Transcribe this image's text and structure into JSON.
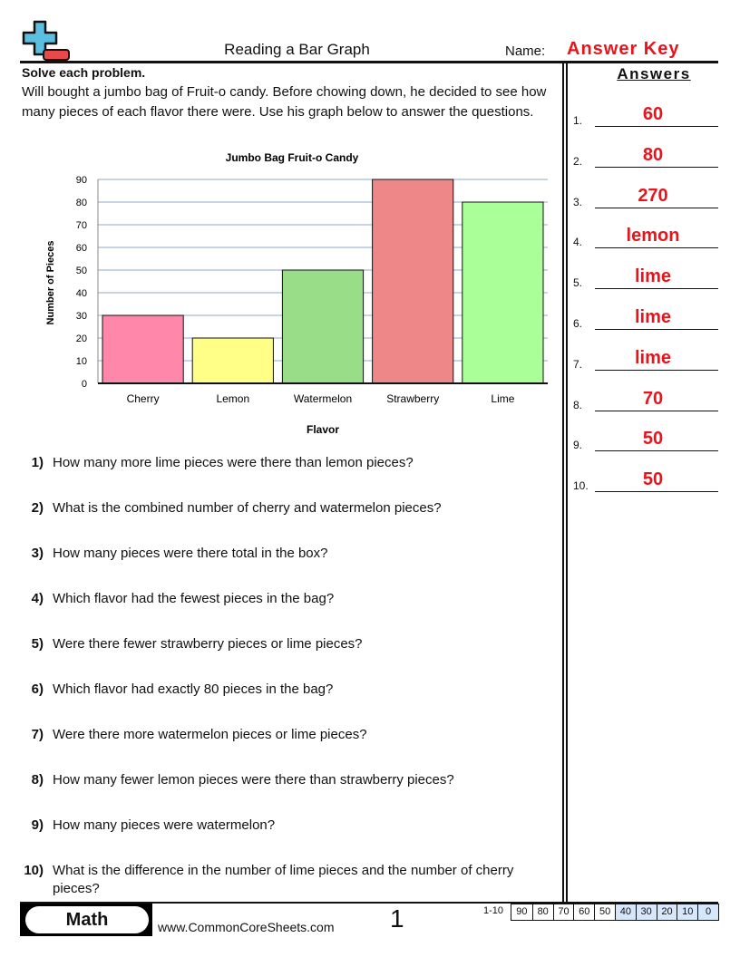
{
  "header": {
    "title": "Reading a Bar Graph",
    "name_label": "Name:",
    "name_value": "Answer Key"
  },
  "instructions": "Solve each problem.",
  "story": "Will bought a jumbo bag of Fruit-o candy. Before chowing down, he decided to see how many pieces of each flavor there were. Use his graph below to answer the questions.",
  "answers": {
    "heading": "Answers",
    "items": [
      {
        "n": "1.",
        "v": "60"
      },
      {
        "n": "2.",
        "v": "80"
      },
      {
        "n": "3.",
        "v": "270"
      },
      {
        "n": "4.",
        "v": "lemon"
      },
      {
        "n": "5.",
        "v": "lime"
      },
      {
        "n": "6.",
        "v": "lime"
      },
      {
        "n": "7.",
        "v": "lime"
      },
      {
        "n": "8.",
        "v": "70"
      },
      {
        "n": "9.",
        "v": "50"
      },
      {
        "n": "10.",
        "v": "50"
      }
    ]
  },
  "questions": [
    {
      "n": "1)",
      "t": "How many more lime pieces were there than lemon pieces?"
    },
    {
      "n": "2)",
      "t": "What is the combined number of cherry and watermelon pieces?"
    },
    {
      "n": "3)",
      "t": "How many pieces were there total in the box?"
    },
    {
      "n": "4)",
      "t": "Which flavor had the fewest pieces in the bag?"
    },
    {
      "n": "5)",
      "t": "Were there fewer strawberry pieces or lime pieces?"
    },
    {
      "n": "6)",
      "t": "Which flavor had exactly 80 pieces in the bag?"
    },
    {
      "n": "7)",
      "t": "Were there more watermelon pieces or lime pieces?"
    },
    {
      "n": "8)",
      "t": "How many fewer lemon pieces were there than strawberry pieces?"
    },
    {
      "n": "9)",
      "t": "How many pieces were watermelon?"
    },
    {
      "n": "10)",
      "t": "What is the difference in the number of lime pieces and the number of cherry pieces?"
    }
  ],
  "chart_data": {
    "type": "bar",
    "title": "Jumbo Bag Fruit-o Candy",
    "xlabel": "Flavor",
    "ylabel": "Number of Pieces",
    "categories": [
      "Cherry",
      "Lemon",
      "Watermelon",
      "Strawberry",
      "Lime"
    ],
    "values": [
      30,
      20,
      50,
      90,
      80
    ],
    "colors": [
      "#ff88aa",
      "#ffff88",
      "#99dd88",
      "#ee8888",
      "#aaff99"
    ],
    "ylim": [
      0,
      90
    ],
    "yticks": [
      0,
      10,
      20,
      30,
      40,
      50,
      60,
      70,
      80,
      90
    ],
    "grid": true
  },
  "footer": {
    "subject": "Math",
    "site": "www.CommonCoreSheets.com",
    "page": "1",
    "range": "1-10",
    "scale": [
      "90",
      "80",
      "70",
      "60",
      "50",
      "40",
      "30",
      "20",
      "10",
      "0"
    ]
  }
}
